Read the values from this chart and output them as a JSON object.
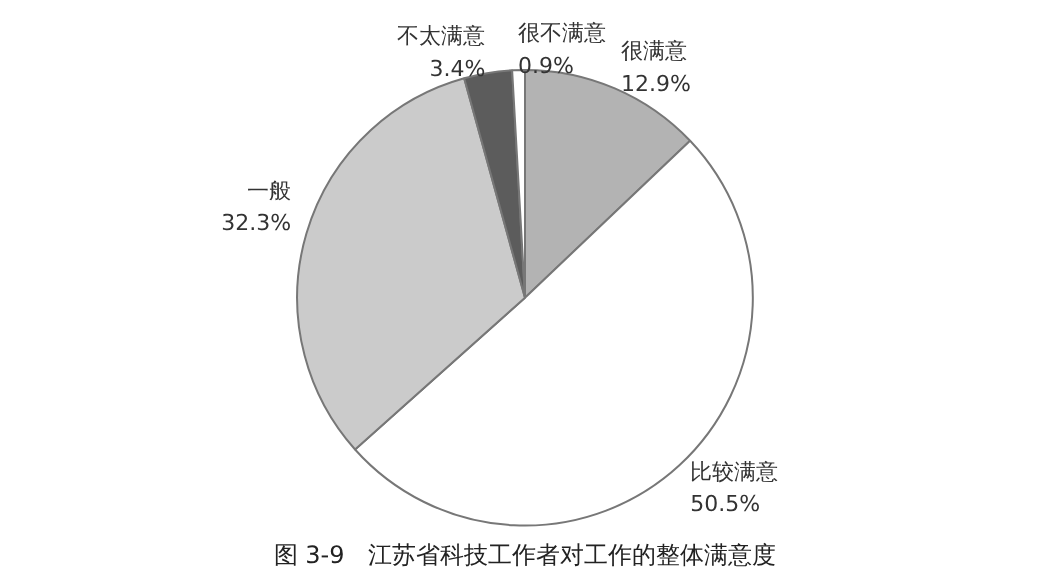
{
  "chart_data": {
    "type": "pie",
    "title": "图 3-9　江苏省科技工作者对工作的整体满意度",
    "categories": [
      "很满意",
      "比较满意",
      "一般",
      "不太满意",
      "很不满意"
    ],
    "values": [
      12.9,
      50.5,
      32.3,
      3.4,
      0.9
    ],
    "value_labels": [
      "12.9%",
      "50.5%",
      "32.3%",
      "3.4%",
      "0.9%"
    ],
    "colors": [
      "#b3b3b3",
      "#ffffff",
      "#cbcbcb",
      "#5c5c5c",
      "#ffffff"
    ]
  }
}
